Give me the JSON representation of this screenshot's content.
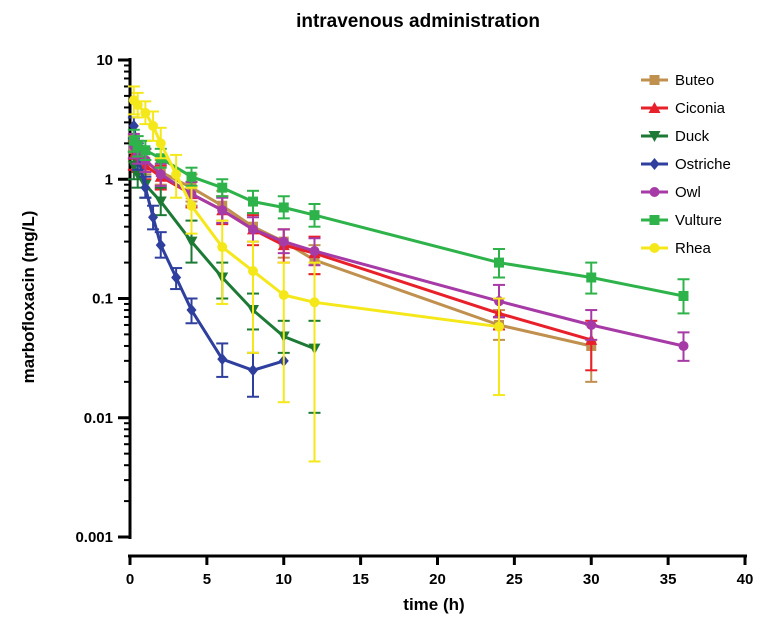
{
  "chart_data": {
    "type": "line",
    "title": "intravenous administration",
    "xlabel": "time (h)",
    "ylabel": "marbofloxacin (mg/L)",
    "xlim": [
      0,
      40
    ],
    "ylim": [
      0.001,
      10
    ],
    "yscale": "log",
    "x_ticks": [
      0,
      5,
      10,
      15,
      20,
      25,
      30,
      35,
      40
    ],
    "x_tick_labels": [
      "0",
      "5",
      "10",
      "15",
      "20",
      "25",
      "30",
      "35",
      "40"
    ],
    "y_ticks": [
      0.001,
      0.01,
      0.1,
      1,
      10
    ],
    "y_tick_labels": [
      "0.001",
      "0.01",
      "0.1",
      "1",
      "10"
    ],
    "grid": false,
    "legend_position": "top-right",
    "series": [
      {
        "name": "Buteo",
        "color": "#c0904e",
        "marker": "square",
        "points": [
          {
            "x": 0.25,
            "y": 1.8,
            "lo": 1.4,
            "hi": 2.3
          },
          {
            "x": 0.5,
            "y": 1.6,
            "lo": 1.3,
            "hi": 2.0
          },
          {
            "x": 1,
            "y": 1.4,
            "lo": 1.1,
            "hi": 1.8
          },
          {
            "x": 2,
            "y": 1.15,
            "lo": 0.9,
            "hi": 1.45
          },
          {
            "x": 4,
            "y": 0.85,
            "lo": 0.65,
            "hi": 1.1
          },
          {
            "x": 6,
            "y": 0.6,
            "lo": 0.45,
            "hi": 0.8
          },
          {
            "x": 8,
            "y": 0.4,
            "lo": 0.3,
            "hi": 0.52
          },
          {
            "x": 10,
            "y": 0.3,
            "lo": 0.22,
            "hi": 0.38
          },
          {
            "x": 12,
            "y": 0.21,
            "lo": 0.16,
            "hi": 0.28
          },
          {
            "x": 24,
            "y": 0.06,
            "lo": 0.045,
            "hi": 0.08
          },
          {
            "x": 30,
            "y": 0.04,
            "lo": 0.02,
            "hi": 0.06
          }
        ]
      },
      {
        "name": "Ciconia",
        "color": "#e8202a",
        "marker": "triangle-up",
        "points": [
          {
            "x": 0.25,
            "y": 1.6,
            "lo": 1.2,
            "hi": 2.1
          },
          {
            "x": 0.5,
            "y": 1.5,
            "lo": 1.15,
            "hi": 1.9
          },
          {
            "x": 1,
            "y": 1.3,
            "lo": 1.0,
            "hi": 1.65
          },
          {
            "x": 2,
            "y": 1.05,
            "lo": 0.82,
            "hi": 1.3
          },
          {
            "x": 4,
            "y": 0.75,
            "lo": 0.58,
            "hi": 0.95
          },
          {
            "x": 6,
            "y": 0.55,
            "lo": 0.42,
            "hi": 0.72
          },
          {
            "x": 8,
            "y": 0.38,
            "lo": 0.28,
            "hi": 0.5
          },
          {
            "x": 10,
            "y": 0.28,
            "lo": 0.2,
            "hi": 0.38
          },
          {
            "x": 12,
            "y": 0.24,
            "lo": 0.16,
            "hi": 0.33
          },
          {
            "x": 24,
            "y": 0.075,
            "lo": 0.055,
            "hi": 0.1
          },
          {
            "x": 30,
            "y": 0.045,
            "lo": 0.025,
            "hi": 0.065
          }
        ]
      },
      {
        "name": "Duck",
        "color": "#1c7a35",
        "marker": "triangle-down",
        "points": [
          {
            "x": 0.25,
            "y": 1.3,
            "lo": 1.0,
            "hi": 1.7
          },
          {
            "x": 0.5,
            "y": 1.1,
            "lo": 0.85,
            "hi": 1.4
          },
          {
            "x": 1,
            "y": 0.9,
            "lo": 0.7,
            "hi": 1.15
          },
          {
            "x": 2,
            "y": 0.65,
            "lo": 0.5,
            "hi": 0.85
          },
          {
            "x": 4,
            "y": 0.3,
            "lo": 0.2,
            "hi": 0.45
          },
          {
            "x": 6,
            "y": 0.15,
            "lo": 0.1,
            "hi": 0.2
          },
          {
            "x": 8,
            "y": 0.08,
            "lo": 0.055,
            "hi": 0.11
          },
          {
            "x": 10,
            "y": 0.048,
            "lo": 0.035,
            "hi": 0.065
          },
          {
            "x": 12,
            "y": 0.038,
            "lo": 0.011,
            "hi": 0.065
          }
        ]
      },
      {
        "name": "Ostriche",
        "color": "#2e3f9e",
        "marker": "diamond",
        "points": [
          {
            "x": 0.25,
            "y": 2.8,
            "lo": 2.2,
            "hi": 3.3
          },
          {
            "x": 0.5,
            "y": 1.6,
            "lo": 1.2,
            "hi": 2.0
          },
          {
            "x": 1,
            "y": 0.85,
            "lo": 0.7,
            "hi": 1.05
          },
          {
            "x": 1.5,
            "y": 0.48,
            "lo": 0.38,
            "hi": 0.6
          },
          {
            "x": 2,
            "y": 0.28,
            "lo": 0.22,
            "hi": 0.36
          },
          {
            "x": 3,
            "y": 0.15,
            "lo": 0.12,
            "hi": 0.18
          },
          {
            "x": 4,
            "y": 0.08,
            "lo": 0.062,
            "hi": 0.1
          },
          {
            "x": 6,
            "y": 0.031,
            "lo": 0.022,
            "hi": 0.042
          },
          {
            "x": 8,
            "y": 0.025,
            "lo": 0.015,
            "hi": 0.035
          },
          {
            "x": 10,
            "y": 0.03,
            "lo": 0.03,
            "hi": 0.03
          }
        ]
      },
      {
        "name": "Owl",
        "color": "#a63aa6",
        "marker": "circle",
        "points": [
          {
            "x": 0.25,
            "y": 1.9,
            "lo": 1.5,
            "hi": 2.4
          },
          {
            "x": 0.5,
            "y": 1.7,
            "lo": 1.35,
            "hi": 2.1
          },
          {
            "x": 1,
            "y": 1.45,
            "lo": 1.15,
            "hi": 1.8
          },
          {
            "x": 2,
            "y": 1.1,
            "lo": 0.88,
            "hi": 1.35
          },
          {
            "x": 4,
            "y": 0.75,
            "lo": 0.6,
            "hi": 0.95
          },
          {
            "x": 6,
            "y": 0.55,
            "lo": 0.43,
            "hi": 0.7
          },
          {
            "x": 8,
            "y": 0.38,
            "lo": 0.3,
            "hi": 0.48
          },
          {
            "x": 10,
            "y": 0.3,
            "lo": 0.24,
            "hi": 0.38
          },
          {
            "x": 12,
            "y": 0.25,
            "lo": 0.19,
            "hi": 0.32
          },
          {
            "x": 24,
            "y": 0.095,
            "lo": 0.07,
            "hi": 0.13
          },
          {
            "x": 30,
            "y": 0.06,
            "lo": 0.045,
            "hi": 0.08
          },
          {
            "x": 36,
            "y": 0.04,
            "lo": 0.03,
            "hi": 0.052
          }
        ]
      },
      {
        "name": "Vulture",
        "color": "#2db34a",
        "marker": "square",
        "points": [
          {
            "x": 0.25,
            "y": 2.1,
            "lo": 1.7,
            "hi": 2.6
          },
          {
            "x": 0.5,
            "y": 1.9,
            "lo": 1.55,
            "hi": 2.3
          },
          {
            "x": 1,
            "y": 1.75,
            "lo": 1.45,
            "hi": 2.1
          },
          {
            "x": 2,
            "y": 1.5,
            "lo": 1.25,
            "hi": 1.8
          },
          {
            "x": 4,
            "y": 1.05,
            "lo": 0.88,
            "hi": 1.25
          },
          {
            "x": 6,
            "y": 0.85,
            "lo": 0.72,
            "hi": 1.0
          },
          {
            "x": 8,
            "y": 0.65,
            "lo": 0.52,
            "hi": 0.8
          },
          {
            "x": 10,
            "y": 0.58,
            "lo": 0.47,
            "hi": 0.72
          },
          {
            "x": 12,
            "y": 0.5,
            "lo": 0.4,
            "hi": 0.62
          },
          {
            "x": 24,
            "y": 0.2,
            "lo": 0.15,
            "hi": 0.26
          },
          {
            "x": 30,
            "y": 0.15,
            "lo": 0.11,
            "hi": 0.2
          },
          {
            "x": 36,
            "y": 0.105,
            "lo": 0.075,
            "hi": 0.145
          }
        ]
      },
      {
        "name": "Rhea",
        "color": "#f5e81a",
        "marker": "circle",
        "points": [
          {
            "x": 0.25,
            "y": 4.6,
            "lo": 3.5,
            "hi": 6.0
          },
          {
            "x": 0.5,
            "y": 4.2,
            "lo": 3.3,
            "hi": 5.3
          },
          {
            "x": 1,
            "y": 3.6,
            "lo": 2.9,
            "hi": 4.5
          },
          {
            "x": 1.5,
            "y": 2.8,
            "lo": 2.1,
            "hi": 3.7
          },
          {
            "x": 2,
            "y": 2.0,
            "lo": 1.5,
            "hi": 2.7
          },
          {
            "x": 3,
            "y": 1.1,
            "lo": 0.7,
            "hi": 1.6
          },
          {
            "x": 4,
            "y": 0.6,
            "lo": 0.35,
            "hi": 0.85
          },
          {
            "x": 6,
            "y": 0.27,
            "lo": 0.09,
            "hi": 0.45
          },
          {
            "x": 8,
            "y": 0.17,
            "lo": 0.035,
            "hi": 0.3
          },
          {
            "x": 10,
            "y": 0.107,
            "lo": 0.0135,
            "hi": 0.2
          },
          {
            "x": 12,
            "y": 0.093,
            "lo": 0.0043,
            "hi": 0.2
          },
          {
            "x": 24,
            "y": 0.058,
            "lo": 0.0155,
            "hi": 0.1
          }
        ]
      }
    ]
  }
}
